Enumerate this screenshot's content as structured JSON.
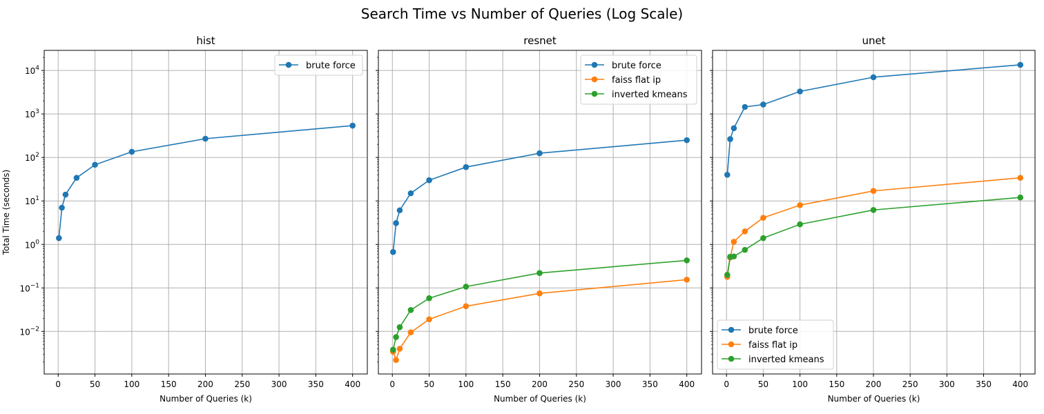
{
  "figure": {
    "suptitle": "Search Time vs Number of Queries (Log Scale)"
  },
  "colors": {
    "brute force": "#1f77b4",
    "faiss flat ip": "#ff7f0e",
    "inverted kmeans": "#2ca02c",
    "grid": "#b0b0b0"
  },
  "chart_data": [
    {
      "type": "line",
      "title": "hist",
      "xlabel": "Number of Queries (k)",
      "ylabel": "Total Time (seconds)",
      "yscale": "log",
      "xlim": [
        -19,
        420
      ],
      "ylim": [
        0.00105,
        29000
      ],
      "xticks": [
        0,
        50,
        100,
        150,
        200,
        250,
        300,
        350,
        400
      ],
      "yticks": [
        "10^-2",
        "10^-1",
        "10^0",
        "10^1",
        "10^2",
        "10^3",
        "10^4"
      ],
      "grid": true,
      "legend_position": "upper right",
      "x": [
        1,
        5,
        10,
        25,
        50,
        100,
        200,
        400
      ],
      "series": [
        {
          "name": "brute force",
          "values": [
            1.4,
            7,
            14,
            34,
            68,
            135,
            270,
            540
          ]
        }
      ]
    },
    {
      "type": "line",
      "title": "resnet",
      "xlabel": "Number of Queries (k)",
      "ylabel": "",
      "yscale": "log",
      "xlim": [
        -19,
        420
      ],
      "ylim": [
        0.00105,
        29000
      ],
      "xticks": [
        0,
        50,
        100,
        150,
        200,
        250,
        300,
        350,
        400
      ],
      "grid": true,
      "legend_position": "upper right",
      "x": [
        1,
        5,
        10,
        25,
        50,
        100,
        200,
        400
      ],
      "series": [
        {
          "name": "brute force",
          "values": [
            0.67,
            3.1,
            6.1,
            15,
            30,
            60,
            125,
            250
          ]
        },
        {
          "name": "faiss flat ip",
          "values": [
            0.0034,
            0.0022,
            0.004,
            0.0095,
            0.019,
            0.038,
            0.075,
            0.155
          ]
        },
        {
          "name": "inverted kmeans",
          "values": [
            0.0038,
            0.0074,
            0.0125,
            0.031,
            0.058,
            0.107,
            0.22,
            0.43
          ]
        }
      ]
    },
    {
      "type": "line",
      "title": "unet",
      "xlabel": "Number of Queries (k)",
      "ylabel": "",
      "yscale": "log",
      "xlim": [
        -19,
        420
      ],
      "ylim": [
        0.00105,
        29000
      ],
      "xticks": [
        0,
        50,
        100,
        150,
        200,
        250,
        300,
        350,
        400
      ],
      "grid": true,
      "legend_position": "lower left",
      "x": [
        1,
        5,
        10,
        25,
        50,
        100,
        200,
        400
      ],
      "series": [
        {
          "name": "brute force",
          "values": [
            40,
            265,
            470,
            1450,
            1650,
            3300,
            7000,
            13500
          ]
        },
        {
          "name": "faiss flat ip",
          "values": [
            0.18,
            0.5,
            1.15,
            2.0,
            4.1,
            8.0,
            17,
            34
          ]
        },
        {
          "name": "inverted kmeans",
          "values": [
            0.2,
            0.52,
            0.53,
            0.75,
            1.4,
            2.9,
            6.2,
            12
          ]
        }
      ]
    }
  ]
}
